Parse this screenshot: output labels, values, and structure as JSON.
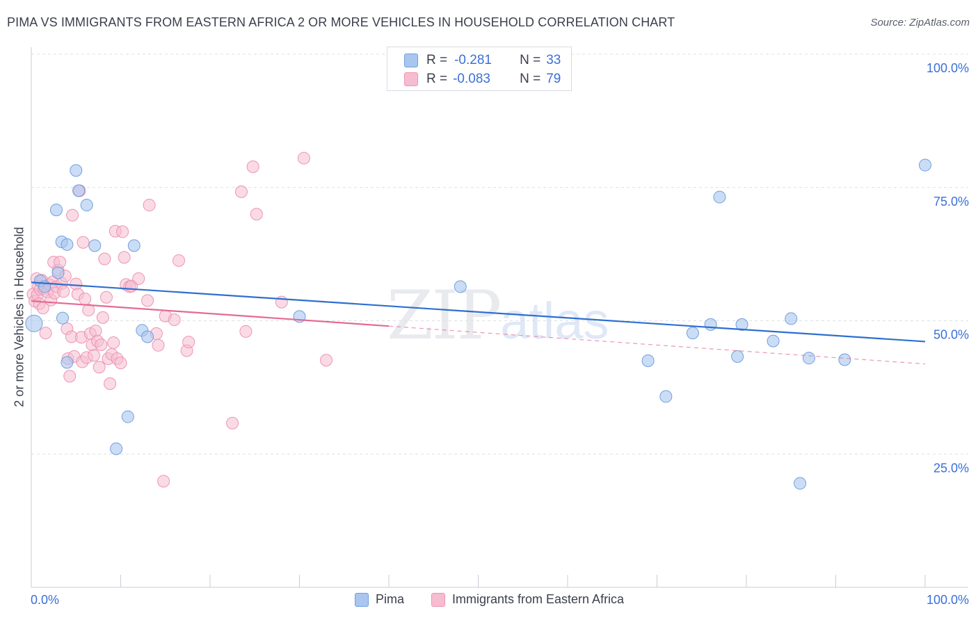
{
  "header": {
    "title": "PIMA VS IMMIGRANTS FROM EASTERN AFRICA 2 OR MORE VEHICLES IN HOUSEHOLD CORRELATION CHART",
    "source": "Source: ZipAtlas.com"
  },
  "stats": {
    "row1": {
      "r_label": "R =",
      "r_value": "-0.281",
      "n_label": "N =",
      "n_value": "33"
    },
    "row2": {
      "r_label": "R =",
      "r_value": "-0.083",
      "n_label": "N =",
      "n_value": "79"
    }
  },
  "legend": {
    "pima": "Pima",
    "immigrants": "Immigrants from Eastern Africa"
  },
  "watermark": {
    "zip": "ZIP",
    "atlas": "atlas"
  },
  "colors": {
    "pima_fill": "#a9c6ef",
    "pima_stroke": "#6f9fe0",
    "pima_line": "#2d6fcf",
    "imm_fill": "#f6bdd0",
    "imm_stroke": "#ee93b3",
    "imm_line": "#e46a94",
    "axis_text": "#3a6fd8",
    "grid": "#dcdfe6"
  },
  "chart_data": {
    "type": "scatter",
    "title": "PIMA VS IMMIGRANTS FROM EASTERN AFRICA 2 OR MORE VEHICLES IN HOUSEHOLD CORRELATION CHART",
    "xlabel": "",
    "ylabel": "2 or more Vehicles in Household",
    "xlim": [
      0,
      100
    ],
    "ylim": [
      0,
      100
    ],
    "x_tick_labels": [
      "0.0%",
      "100.0%"
    ],
    "y_ticks": [
      25,
      50,
      75,
      100
    ],
    "y_tick_labels": [
      "25.0%",
      "50.0%",
      "75.0%",
      "100.0%"
    ],
    "grid": true,
    "legend_position": "bottom",
    "series": [
      {
        "name": "Pima",
        "color": "#a9c6ef",
        "points": [
          [
            0.3,
            49.5
          ],
          [
            1.0,
            57.5
          ],
          [
            2.8,
            70.8
          ],
          [
            3.0,
            59.0
          ],
          [
            3.4,
            64.8
          ],
          [
            3.5,
            50.5
          ],
          [
            4.0,
            42.2
          ],
          [
            4.0,
            64.3
          ],
          [
            5.0,
            78.2
          ],
          [
            5.3,
            74.4
          ],
          [
            6.2,
            71.7
          ],
          [
            7.1,
            64.1
          ],
          [
            9.5,
            26.0
          ],
          [
            10.8,
            32.0
          ],
          [
            11.5,
            64.1
          ],
          [
            12.4,
            48.2
          ],
          [
            13.0,
            47.0
          ],
          [
            30.0,
            50.8
          ],
          [
            48.0,
            56.4
          ],
          [
            69.0,
            42.5
          ],
          [
            71.0,
            35.8
          ],
          [
            74.0,
            47.7
          ],
          [
            76.0,
            49.3
          ],
          [
            77.0,
            73.2
          ],
          [
            79.0,
            43.3
          ],
          [
            79.5,
            49.3
          ],
          [
            83.0,
            46.2
          ],
          [
            85.0,
            50.4
          ],
          [
            86.0,
            19.5
          ],
          [
            87.0,
            43.0
          ],
          [
            91.0,
            42.7
          ],
          [
            100.0,
            79.2
          ],
          [
            1.5,
            56.4
          ]
        ],
        "trend": {
          "x": [
            0,
            100
          ],
          "y": [
            57.2,
            46.1
          ]
        }
      },
      {
        "name": "Immigrants from Eastern Africa",
        "color": "#f6bdd0",
        "points": [
          [
            0.2,
            55.0
          ],
          [
            0.4,
            53.7
          ],
          [
            0.6,
            57.9
          ],
          [
            0.7,
            54.9
          ],
          [
            0.8,
            56.5
          ],
          [
            0.9,
            53.2
          ],
          [
            1.0,
            55.9
          ],
          [
            1.2,
            57.6
          ],
          [
            1.3,
            52.4
          ],
          [
            1.4,
            56.0
          ],
          [
            1.6,
            47.7
          ],
          [
            1.8,
            55.4
          ],
          [
            2.0,
            56.8
          ],
          [
            2.2,
            53.9
          ],
          [
            2.4,
            57.3
          ],
          [
            2.5,
            61.0
          ],
          [
            2.6,
            55.2
          ],
          [
            2.8,
            56.4
          ],
          [
            3.0,
            59.5
          ],
          [
            3.2,
            61.0
          ],
          [
            3.4,
            57.0
          ],
          [
            3.6,
            55.5
          ],
          [
            3.8,
            58.4
          ],
          [
            4.0,
            48.5
          ],
          [
            4.1,
            42.9
          ],
          [
            4.3,
            39.6
          ],
          [
            4.5,
            47.0
          ],
          [
            4.6,
            69.8
          ],
          [
            4.8,
            43.3
          ],
          [
            5.0,
            56.9
          ],
          [
            5.2,
            55.0
          ],
          [
            5.4,
            74.4
          ],
          [
            5.6,
            46.9
          ],
          [
            5.7,
            42.3
          ],
          [
            5.8,
            64.7
          ],
          [
            6.0,
            54.1
          ],
          [
            6.2,
            43.1
          ],
          [
            6.4,
            52.0
          ],
          [
            6.6,
            47.6
          ],
          [
            6.8,
            45.5
          ],
          [
            7.0,
            43.5
          ],
          [
            7.2,
            48.1
          ],
          [
            7.4,
            46.2
          ],
          [
            7.6,
            41.3
          ],
          [
            7.8,
            45.5
          ],
          [
            8.0,
            50.6
          ],
          [
            8.2,
            61.6
          ],
          [
            8.4,
            54.4
          ],
          [
            8.6,
            42.9
          ],
          [
            8.8,
            38.2
          ],
          [
            9.0,
            43.7
          ],
          [
            9.2,
            45.9
          ],
          [
            9.4,
            66.8
          ],
          [
            9.6,
            42.9
          ],
          [
            10.0,
            42.1
          ],
          [
            10.2,
            66.7
          ],
          [
            10.4,
            61.9
          ],
          [
            10.6,
            56.8
          ],
          [
            11.0,
            56.4
          ],
          [
            11.2,
            56.5
          ],
          [
            12.0,
            57.9
          ],
          [
            13.0,
            53.8
          ],
          [
            13.2,
            71.7
          ],
          [
            14.0,
            47.6
          ],
          [
            14.2,
            45.4
          ],
          [
            14.8,
            19.9
          ],
          [
            15.0,
            50.9
          ],
          [
            16.0,
            50.2
          ],
          [
            16.5,
            61.3
          ],
          [
            17.4,
            44.4
          ],
          [
            17.6,
            46.0
          ],
          [
            22.5,
            30.8
          ],
          [
            23.5,
            74.2
          ],
          [
            24.0,
            48.0
          ],
          [
            24.8,
            78.9
          ],
          [
            25.2,
            70.0
          ],
          [
            28.0,
            53.5
          ],
          [
            30.5,
            80.5
          ],
          [
            33.0,
            42.6
          ]
        ],
        "trend": {
          "x": [
            0,
            40
          ],
          "y": [
            53.7,
            49.0
          ]
        },
        "trend_extension": {
          "x": [
            40,
            100
          ],
          "y": [
            49.0,
            41.9
          ]
        }
      }
    ]
  }
}
